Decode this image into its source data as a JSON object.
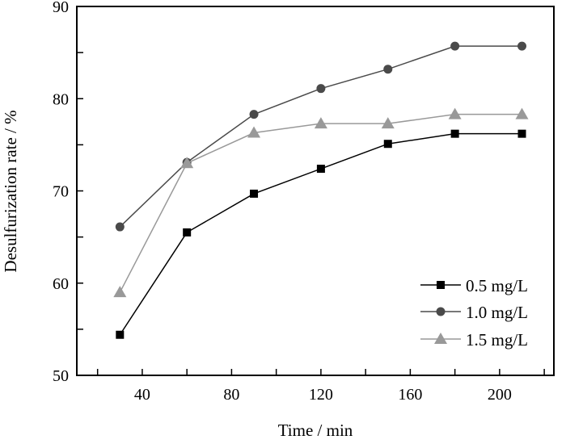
{
  "chart_data": {
    "type": "line",
    "title": "",
    "xlabel": "Time / min",
    "ylabel": "Desulfurization rate / %",
    "xlim": [
      10.7,
      224.3
    ],
    "ylim": [
      50,
      90
    ],
    "xticks": [
      40,
      80,
      120,
      160,
      200
    ],
    "xtick_labels": [
      "40",
      "80",
      "120",
      "160",
      "200"
    ],
    "xminor_step": 20,
    "yticks": [
      50,
      60,
      70,
      80,
      90
    ],
    "ytick_labels": [
      "50",
      "60",
      "70",
      "80",
      "90"
    ],
    "yminor_step": 5,
    "grid": false,
    "legend_position": "bottom-right",
    "x": [
      30,
      60,
      90,
      120,
      150,
      180,
      210
    ],
    "series": [
      {
        "name": "0.5 mg/L",
        "marker": "square",
        "color": "#000000",
        "values": [
          54.4,
          65.5,
          69.7,
          72.4,
          75.1,
          76.2,
          76.2
        ]
      },
      {
        "name": "1.0 mg/L",
        "marker": "circle",
        "color": "#4a4a4a",
        "values": [
          66.1,
          73.1,
          78.3,
          81.1,
          83.2,
          85.7,
          85.7
        ]
      },
      {
        "name": "1.5 mg/L",
        "marker": "triangle",
        "color": "#999999",
        "values": [
          59.0,
          73.0,
          76.3,
          77.3,
          77.3,
          78.3,
          78.3
        ]
      }
    ]
  }
}
